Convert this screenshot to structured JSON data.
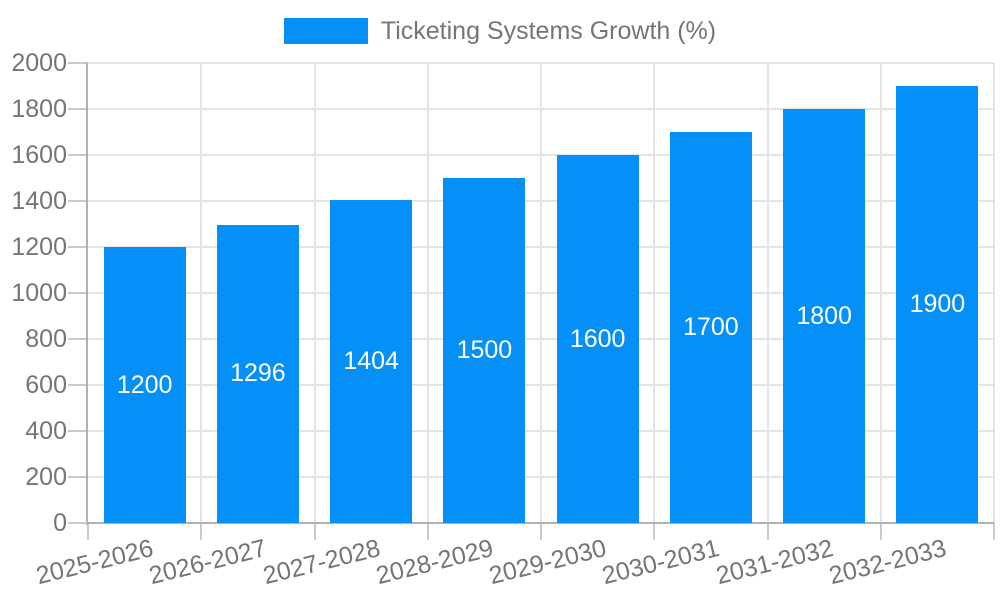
{
  "chart_data": {
    "type": "bar",
    "title": "",
    "legend": {
      "label": "Ticketing Systems Growth (%)",
      "position": "top-center"
    },
    "categories": [
      "2025-2026",
      "2026-2027",
      "2027-2028",
      "2028-2029",
      "2029-2030",
      "2030-2031",
      "2031-2032",
      "2032-2033"
    ],
    "series": [
      {
        "name": "Ticketing Systems Growth (%)",
        "values": [
          1200,
          1296,
          1404,
          1500,
          1600,
          1700,
          1800,
          1900
        ]
      }
    ],
    "value_labels": [
      "1200",
      "1296",
      "1404",
      "1500",
      "1600",
      "1700",
      "1800",
      "1900"
    ],
    "xlabel": "",
    "ylabel": "",
    "ylim": [
      0,
      2000
    ],
    "yticks": [
      0,
      200,
      400,
      600,
      800,
      1000,
      1200,
      1400,
      1600,
      1800,
      2000
    ],
    "grid": true,
    "x_label_rotation_deg": -14,
    "colors": {
      "bar": "#0590f8",
      "value_label": "#ffffff",
      "axis_text": "#757575",
      "legend_text": "#757575",
      "grid_line": "#e4e4e4",
      "axis_line": "#b2b2b2",
      "tick": "#c9c9c9",
      "background": "#ffffff"
    }
  }
}
